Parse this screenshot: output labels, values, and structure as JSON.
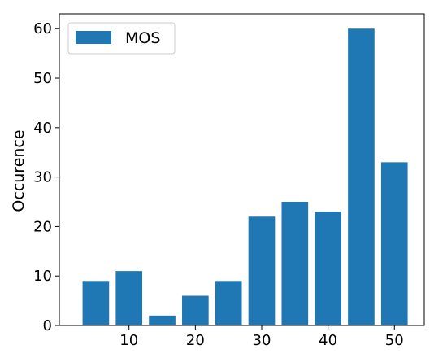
{
  "chart_data": {
    "type": "bar",
    "title": "",
    "xlabel": "",
    "ylabel": "Occurence",
    "series": [
      {
        "name": "MOS",
        "color": "#1f77b4",
        "x": [
          5,
          10,
          15,
          20,
          25,
          30,
          35,
          40,
          45,
          50
        ],
        "values": [
          9,
          11,
          2,
          6,
          9,
          22,
          25,
          23,
          60,
          33
        ]
      }
    ],
    "bar_width": 4,
    "xlim": [
      -0.5,
      54.5
    ],
    "ylim": [
      0,
      63
    ],
    "xticks": [
      10,
      20,
      30,
      40,
      50
    ],
    "yticks": [
      0,
      10,
      20,
      30,
      40,
      50,
      60
    ],
    "grid": false,
    "legend_position": "upper left"
  }
}
